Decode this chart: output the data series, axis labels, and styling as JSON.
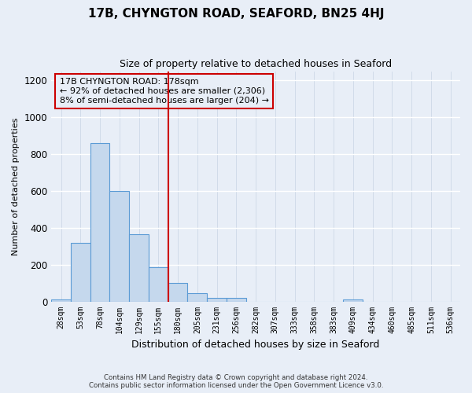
{
  "title": "17B, CHYNGTON ROAD, SEAFORD, BN25 4HJ",
  "subtitle": "Size of property relative to detached houses in Seaford",
  "xlabel": "Distribution of detached houses by size in Seaford",
  "ylabel": "Number of detached properties",
  "bar_labels": [
    "28sqm",
    "53sqm",
    "78sqm",
    "104sqm",
    "129sqm",
    "155sqm",
    "180sqm",
    "205sqm",
    "231sqm",
    "256sqm",
    "282sqm",
    "307sqm",
    "333sqm",
    "358sqm",
    "383sqm",
    "409sqm",
    "434sqm",
    "460sqm",
    "485sqm",
    "511sqm",
    "536sqm"
  ],
  "bar_values": [
    10,
    320,
    860,
    600,
    365,
    185,
    100,
    47,
    20,
    18,
    0,
    0,
    0,
    0,
    0,
    10,
    0,
    0,
    0,
    0,
    0
  ],
  "bar_fill_color": "#c5d8ed",
  "bar_edge_color": "#5b9bd5",
  "vline_x_index": 6,
  "vline_color": "#cc0000",
  "annotation_line1": "17B CHYNGTON ROAD: 178sqm",
  "annotation_line2": "← 92% of detached houses are smaller (2,306)",
  "annotation_line3": "8% of semi-detached houses are larger (204) →",
  "annotation_box_color": "#cc0000",
  "ylim": [
    0,
    1250
  ],
  "yticks": [
    0,
    200,
    400,
    600,
    800,
    1000,
    1200
  ],
  "footer_line1": "Contains HM Land Registry data © Crown copyright and database right 2024.",
  "footer_line2": "Contains public sector information licensed under the Open Government Licence v3.0.",
  "bg_color": "#e8eef7",
  "grid_color": "#d0d8e8",
  "title_fontsize": 11,
  "subtitle_fontsize": 9,
  "xlabel_fontsize": 9,
  "ylabel_fontsize": 8
}
